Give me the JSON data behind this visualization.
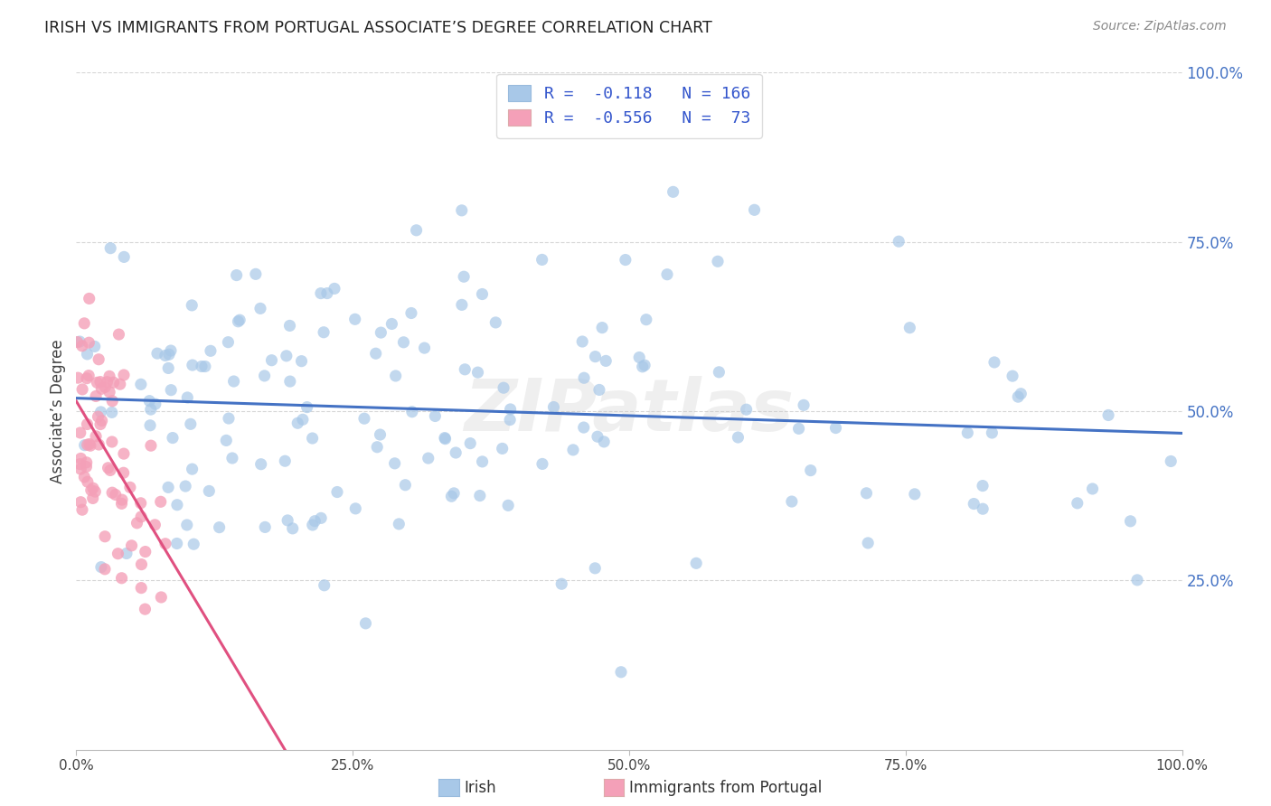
{
  "title": "IRISH VS IMMIGRANTS FROM PORTUGAL ASSOCIATE’S DEGREE CORRELATION CHART",
  "source": "Source: ZipAtlas.com",
  "ylabel": "Associate’s Degree",
  "legend_irish_r": "-0.118",
  "legend_irish_n": "166",
  "legend_portugal_r": "-0.556",
  "legend_portugal_n": "73",
  "watermark": "ZIPatlas",
  "irish_color": "#a8c8e8",
  "irish_line_color": "#4472c4",
  "portugal_color": "#f4a0b8",
  "portugal_line_color": "#e05080",
  "background_color": "#ffffff",
  "grid_color": "#cccccc",
  "tick_label_color": "#4472c4",
  "title_color": "#222222",
  "source_color": "#888888",
  "ylabel_color": "#444444"
}
